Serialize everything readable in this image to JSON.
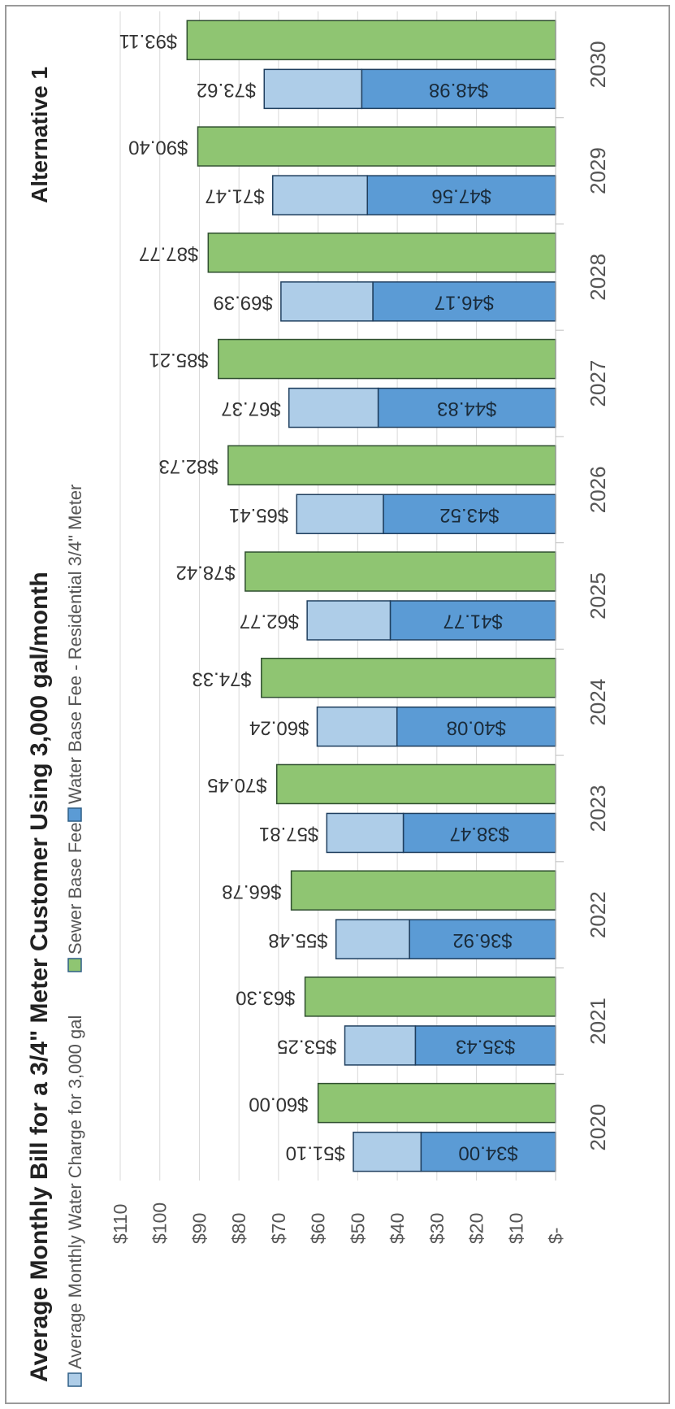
{
  "chart_data": {
    "type": "bar",
    "title": "Average Monthly Bill for a 3/4\" Meter Customer Using 3,000 gal/month",
    "subtitle": "Alternative 1",
    "categories": [
      "2020",
      "2021",
      "2022",
      "2023",
      "2024",
      "2025",
      "2026",
      "2027",
      "2028",
      "2029",
      "2030"
    ],
    "series": [
      {
        "name": "Average Monthly Water Charge for 3,000 gal",
        "stack": "water",
        "color": "#aecde8",
        "values": [
          17.1,
          17.82,
          18.56,
          19.34,
          20.16,
          21.0,
          21.89,
          22.54,
          23.22,
          23.91,
          24.64
        ],
        "labels": [
          "$51.10",
          "$53.25",
          "$55.48",
          "$57.81",
          "$60.24",
          "$62.77",
          "$65.41",
          "$67.37",
          "$69.39",
          "$71.47",
          "$73.62"
        ]
      },
      {
        "name": "Sewer Base Fee",
        "stack": "sewer",
        "color": "#8fc572",
        "values": [
          60.0,
          63.3,
          66.78,
          70.45,
          74.33,
          78.42,
          82.73,
          85.21,
          87.77,
          90.4,
          93.11
        ],
        "labels": [
          "$60.00",
          "$63.30",
          "$66.78",
          "$70.45",
          "$74.33",
          "$78.42",
          "$82.73",
          "$85.21",
          "$87.77",
          "$90.40",
          "$93.11"
        ]
      },
      {
        "name": "Water Base Fee - Residential 3/4\" Meter",
        "stack": "water",
        "color": "#5b9bd5",
        "values": [
          34.0,
          35.43,
          36.92,
          38.47,
          40.08,
          41.77,
          43.52,
          44.83,
          46.17,
          47.56,
          48.98
        ],
        "labels": [
          "$34.00",
          "$35.43",
          "$36.92",
          "$38.47",
          "$40.08",
          "$41.77",
          "$43.52",
          "$44.83",
          "$46.17",
          "$47.56",
          "$48.98"
        ]
      }
    ],
    "ylim": [
      0,
      110
    ],
    "yticks": [
      "$-",
      "$10",
      "$20",
      "$30",
      "$40",
      "$50",
      "$60",
      "$70",
      "$80",
      "$90",
      "$100",
      "$110"
    ],
    "grid": true,
    "legend": "top"
  }
}
